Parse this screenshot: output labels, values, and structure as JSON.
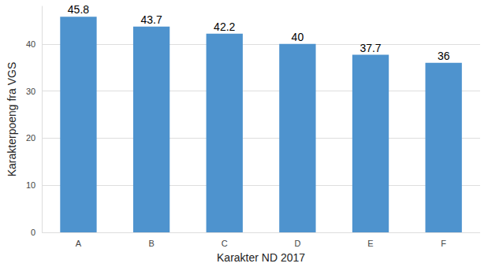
{
  "chart_data": {
    "type": "bar",
    "x_label": "Karakter ND 2017",
    "y_label": "Karakterpoeng fra VGS",
    "categories": [
      "A",
      "B",
      "C",
      "D",
      "E",
      "F"
    ],
    "values": [
      45.8,
      43.7,
      42.2,
      40,
      37.7,
      36
    ],
    "color": "#4e93ce",
    "ylim": [
      0,
      48
    ],
    "yticks": [
      0,
      10,
      20,
      30,
      40
    ],
    "grid": true,
    "data_labels": true
  }
}
